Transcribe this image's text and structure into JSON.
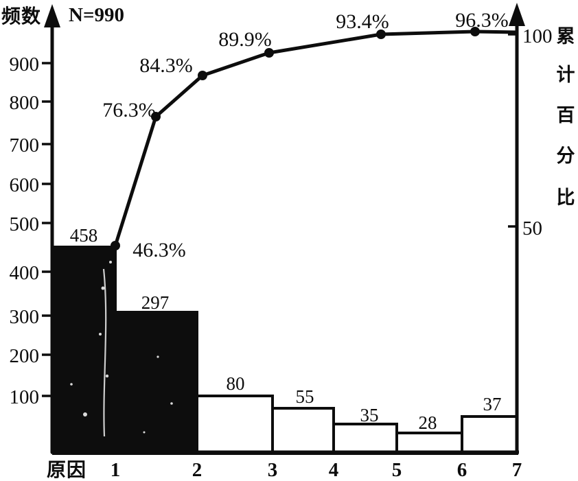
{
  "figure": {
    "left_axis_title": "频数",
    "sample_size_label": "N=990",
    "x_axis_title": "原因",
    "right_axis_title": "累计百分比",
    "right_axis_title_chars": [
      "累",
      "计",
      "百",
      "分",
      "比"
    ],
    "ink_color": "#0d0d0d",
    "paper_color": "#ffffff"
  },
  "chart_data": {
    "type": "bar",
    "subtype": "pareto",
    "title": "",
    "n_total_label": "N=990",
    "n_total": 990,
    "categories": [
      "1",
      "2",
      "3",
      "4",
      "5",
      "6",
      "7"
    ],
    "series": [
      {
        "name": "频数",
        "type": "bar",
        "values": [
          458,
          297,
          80,
          55,
          35,
          28,
          37
        ],
        "value_labels": [
          "458",
          "297",
          "80",
          "55",
          "35",
          "28",
          "37"
        ]
      },
      {
        "name": "累计百分比",
        "type": "line",
        "values": [
          46.3,
          76.3,
          84.3,
          89.9,
          93.4,
          96.3,
          100
        ],
        "point_labels": [
          "46.3%",
          "76.3%",
          "84.3%",
          "89.9%",
          "93.4%",
          "96.3%"
        ]
      }
    ],
    "bar_fill_black": [
      true,
      true,
      false,
      false,
      false,
      false,
      false
    ],
    "xlabel": "原因",
    "ylabel_left": "频数",
    "ylabel_right": "累计百分比",
    "left_axis_ticks": [
      900,
      800,
      700,
      600,
      500,
      400,
      300,
      200,
      100
    ],
    "right_axis_ticks": [
      100,
      50
    ],
    "ylim_left": [
      0,
      990
    ],
    "ylim_right": [
      0,
      100
    ],
    "grid": false,
    "legend": false
  }
}
